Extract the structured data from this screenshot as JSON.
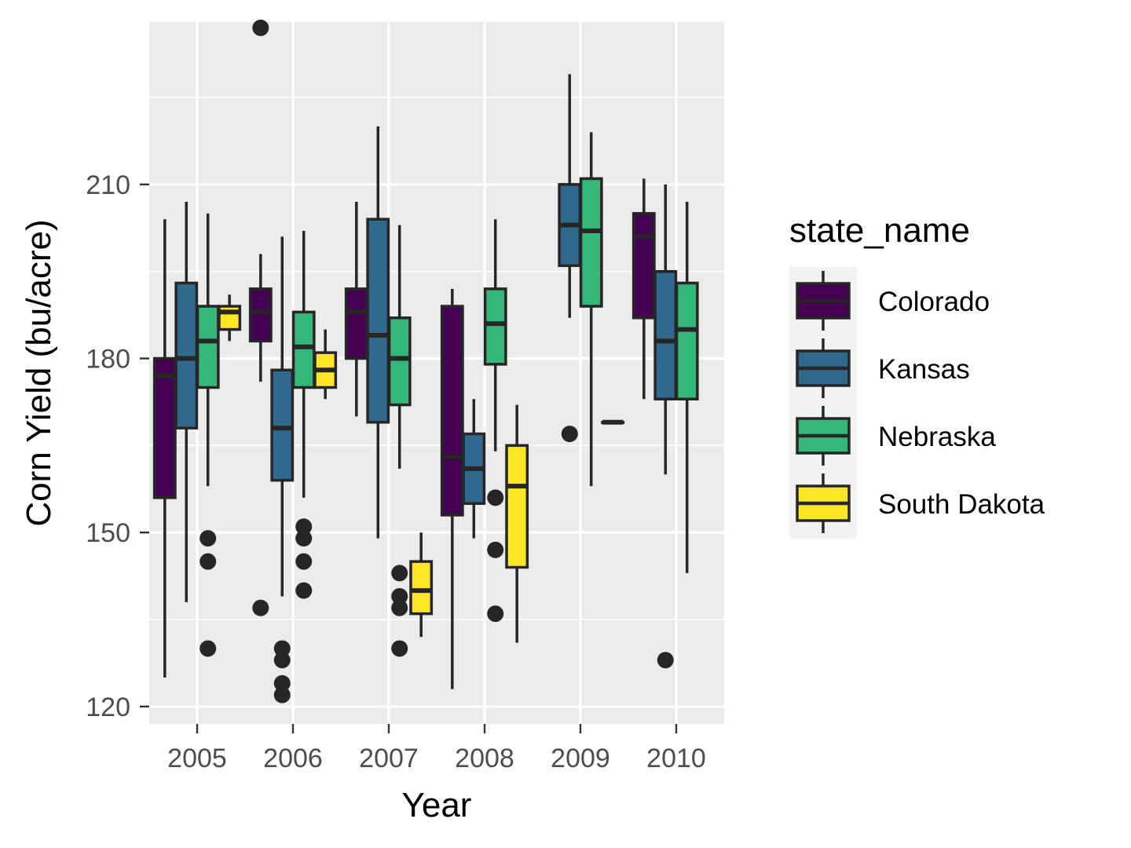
{
  "chart_data": {
    "type": "boxplot",
    "xlabel": "Year",
    "ylabel": "Corn Yield (bu/acre)",
    "ylim": [
      117,
      238
    ],
    "yticks": [
      120,
      150,
      180,
      210
    ],
    "categories": [
      "2005",
      "2006",
      "2007",
      "2008",
      "2009",
      "2010"
    ],
    "grid": true,
    "legend": {
      "title": "state_name",
      "position": "right"
    },
    "series": [
      {
        "name": "Colorado",
        "color": "#440154",
        "boxes": [
          {
            "year": "2005",
            "min": 125,
            "q1": 156,
            "median": 177,
            "q3": 180,
            "max": 204,
            "outliers": []
          },
          {
            "year": "2006",
            "min": 176,
            "q1": 183,
            "median": 188,
            "q3": 192,
            "max": 198,
            "outliers": [
              237,
              137
            ]
          },
          {
            "year": "2007",
            "min": 170,
            "q1": 180,
            "median": 188,
            "q3": 192,
            "max": 207,
            "outliers": []
          },
          {
            "year": "2008",
            "min": 123,
            "q1": 153,
            "median": 163,
            "q3": 189,
            "max": 192,
            "outliers": []
          },
          null,
          {
            "year": "2010",
            "min": 173,
            "q1": 187,
            "median": 201,
            "q3": 205,
            "max": 211,
            "outliers": []
          }
        ]
      },
      {
        "name": "Kansas",
        "color": "#31688e",
        "boxes": [
          {
            "year": "2005",
            "min": 138,
            "q1": 168,
            "median": 180,
            "q3": 193,
            "max": 207,
            "outliers": []
          },
          {
            "year": "2006",
            "min": 139,
            "q1": 159,
            "median": 168,
            "q3": 178,
            "max": 201,
            "outliers": [
              130,
              128,
              124,
              122
            ]
          },
          {
            "year": "2007",
            "min": 149,
            "q1": 169,
            "median": 184,
            "q3": 204,
            "max": 220,
            "outliers": []
          },
          {
            "year": "2008",
            "min": 149,
            "q1": 155,
            "median": 161,
            "q3": 167,
            "max": 173,
            "outliers": []
          },
          {
            "year": "2009",
            "min": 187,
            "q1": 196,
            "median": 203,
            "q3": 210,
            "max": 229,
            "outliers": [
              167
            ]
          },
          {
            "year": "2010",
            "min": 160,
            "q1": 173,
            "median": 183,
            "q3": 195,
            "max": 210,
            "outliers": [
              128
            ]
          }
        ]
      },
      {
        "name": "Nebraska",
        "color": "#35b779",
        "boxes": [
          {
            "year": "2005",
            "min": 158,
            "q1": 175,
            "median": 183,
            "q3": 189,
            "max": 205,
            "outliers": [
              149,
              145,
              130
            ]
          },
          {
            "year": "2006",
            "min": 156,
            "q1": 175,
            "median": 182,
            "q3": 188,
            "max": 202,
            "outliers": [
              151,
              149,
              145,
              140
            ]
          },
          {
            "year": "2007",
            "min": 161,
            "q1": 172,
            "median": 180,
            "q3": 187,
            "max": 203,
            "outliers": [
              143,
              139,
              137,
              130
            ]
          },
          {
            "year": "2008",
            "min": 164,
            "q1": 179,
            "median": 186,
            "q3": 192,
            "max": 204,
            "outliers": [
              156,
              147,
              136
            ]
          },
          {
            "year": "2009",
            "min": 158,
            "q1": 189,
            "median": 202,
            "q3": 211,
            "max": 219,
            "outliers": []
          },
          {
            "year": "2010",
            "min": 143,
            "q1": 173,
            "median": 185,
            "q3": 193,
            "max": 207,
            "outliers": []
          }
        ]
      },
      {
        "name": "South Dakota",
        "color": "#fde725",
        "boxes": [
          {
            "year": "2005",
            "min": 183,
            "q1": 185,
            "median": 188,
            "q3": 189,
            "max": 191,
            "outliers": []
          },
          {
            "year": "2006",
            "min": 173,
            "q1": 175,
            "median": 178,
            "q3": 181,
            "max": 185,
            "outliers": []
          },
          {
            "year": "2007",
            "min": 132,
            "q1": 136,
            "median": 140,
            "q3": 145,
            "max": 150,
            "outliers": []
          },
          {
            "year": "2008",
            "min": 131,
            "q1": 144,
            "median": 158,
            "q3": 165,
            "max": 172,
            "outliers": []
          },
          {
            "year": "2009",
            "min": 169,
            "q1": 169,
            "median": 169,
            "q3": 169,
            "max": 169,
            "outliers": []
          },
          null
        ]
      }
    ]
  }
}
